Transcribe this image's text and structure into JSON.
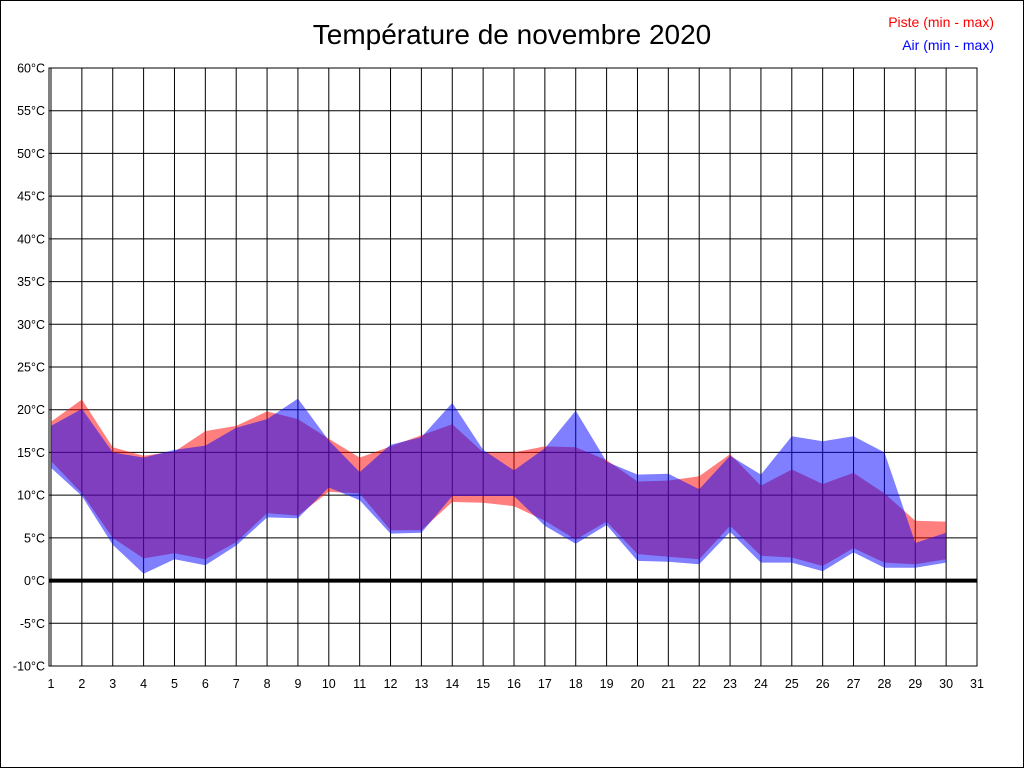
{
  "page_title": "Température de novembre 2020",
  "legend": {
    "items": [
      {
        "label": "Piste (min - max)",
        "color": "#ff0000"
      },
      {
        "label": "Air (min - max)",
        "color": "#0000ff"
      }
    ],
    "position": "top-right"
  },
  "chart_data": {
    "type": "area",
    "subtype": "min-max-bands",
    "title": "Température de novembre 2020",
    "xlabel": "",
    "ylabel": "",
    "xlim": [
      1,
      31
    ],
    "ylim": [
      -10,
      60
    ],
    "grid": true,
    "zero_line_emphasized": true,
    "x_ticks": [
      1,
      2,
      3,
      4,
      5,
      6,
      7,
      8,
      9,
      10,
      11,
      12,
      13,
      14,
      15,
      16,
      17,
      18,
      19,
      20,
      21,
      22,
      23,
      24,
      25,
      26,
      27,
      28,
      29,
      30,
      31
    ],
    "y_ticks": [
      60,
      55,
      50,
      45,
      40,
      35,
      30,
      25,
      20,
      15,
      10,
      5,
      0,
      -5,
      -10
    ],
    "y_tick_labels": [
      "60°C",
      "55°C",
      "50°C",
      "45°C",
      "40°C",
      "35°C",
      "30°C",
      "25°C",
      "20°C",
      "15°C",
      "10°C",
      "5°C",
      "0°C",
      "-5°C",
      "-10°C"
    ],
    "x": [
      1,
      2,
      3,
      4,
      5,
      6,
      7,
      8,
      9,
      10,
      11,
      12,
      13,
      14,
      15,
      16,
      17,
      18,
      19,
      20,
      21,
      22,
      23,
      24,
      25,
      26,
      27,
      28,
      29,
      30
    ],
    "series": [
      {
        "name": "Piste (min - max)",
        "color": "#ff0000",
        "fill_opacity": 0.5,
        "min": [
          14.0,
          10.2,
          5.0,
          2.6,
          3.2,
          2.5,
          4.5,
          7.9,
          7.6,
          10.4,
          10.2,
          5.9,
          5.9,
          9.2,
          9.1,
          8.7,
          7.0,
          4.8,
          6.9,
          3.1,
          2.8,
          2.5,
          6.4,
          2.9,
          2.7,
          1.7,
          3.8,
          2.1,
          1.9,
          2.5
        ],
        "max": [
          18.6,
          21.2,
          15.6,
          14.6,
          15.1,
          17.5,
          18.1,
          19.8,
          18.9,
          16.6,
          14.4,
          15.7,
          17.0,
          18.3,
          15.0,
          15.0,
          15.7,
          15.6,
          14.1,
          11.6,
          11.7,
          12.2,
          14.8,
          11.1,
          13.0,
          11.3,
          12.6,
          10.2,
          7.0,
          6.9
        ]
      },
      {
        "name": "Air (min - max)",
        "color": "#0000ff",
        "fill_opacity": 0.5,
        "min": [
          13.2,
          9.9,
          4.2,
          0.8,
          2.5,
          1.8,
          4.1,
          7.4,
          7.3,
          10.9,
          9.4,
          5.5,
          5.6,
          9.9,
          9.9,
          9.9,
          6.4,
          4.3,
          6.5,
          2.3,
          2.2,
          1.9,
          5.7,
          2.1,
          2.1,
          1.1,
          3.3,
          1.5,
          1.5,
          2.1
        ],
        "max": [
          18.1,
          20.1,
          15.0,
          14.4,
          15.3,
          15.8,
          17.9,
          18.9,
          21.3,
          16.4,
          12.7,
          15.9,
          16.8,
          20.8,
          15.3,
          12.9,
          15.5,
          19.9,
          13.9,
          12.4,
          12.5,
          10.7,
          14.6,
          12.4,
          16.9,
          16.3,
          16.9,
          15.0,
          4.4,
          5.6
        ]
      }
    ]
  }
}
